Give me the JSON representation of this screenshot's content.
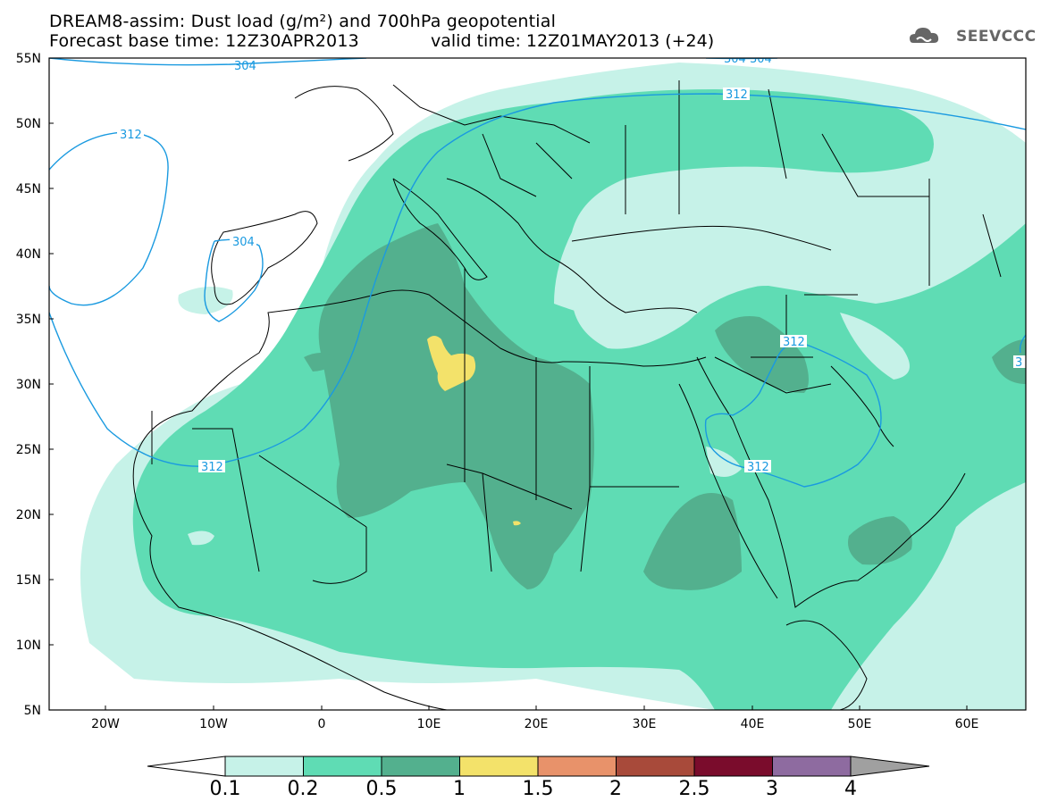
{
  "title": {
    "line1": "DREAM8-assim: Dust load (g/m²) and 700hPa geopotential",
    "line2": "Forecast base time: 12Z30APR2013",
    "valid": "valid time: 12Z01MAY2013 (+24)"
  },
  "logo": {
    "text": "SEEVCCC",
    "icon": "cloud-icon"
  },
  "axes": {
    "lat_labels": [
      "55N",
      "50N",
      "45N",
      "40N",
      "35N",
      "30N",
      "25N",
      "20N",
      "15N",
      "10N",
      "5N"
    ],
    "lon_labels": [
      "20W",
      "10W",
      "0",
      "10E",
      "20E",
      "30E",
      "40E",
      "50E",
      "60E"
    ]
  },
  "contours": {
    "labels": [
      "312",
      "304",
      "312",
      "312",
      "312",
      "312",
      "3",
      "304 304",
      "304"
    ]
  },
  "colorbar": {
    "colors": [
      "#c6f2e8",
      "#5fdcb4",
      "#53b08e",
      "#f3e26a",
      "#e8926a",
      "#a84a3a",
      "#7a0c2c",
      "#8e6ba0",
      "#a0a0a0"
    ],
    "labels": [
      "0.1",
      "0.2",
      "0.5",
      "1",
      "1.5",
      "2",
      "2.5",
      "3",
      "4"
    ]
  }
}
